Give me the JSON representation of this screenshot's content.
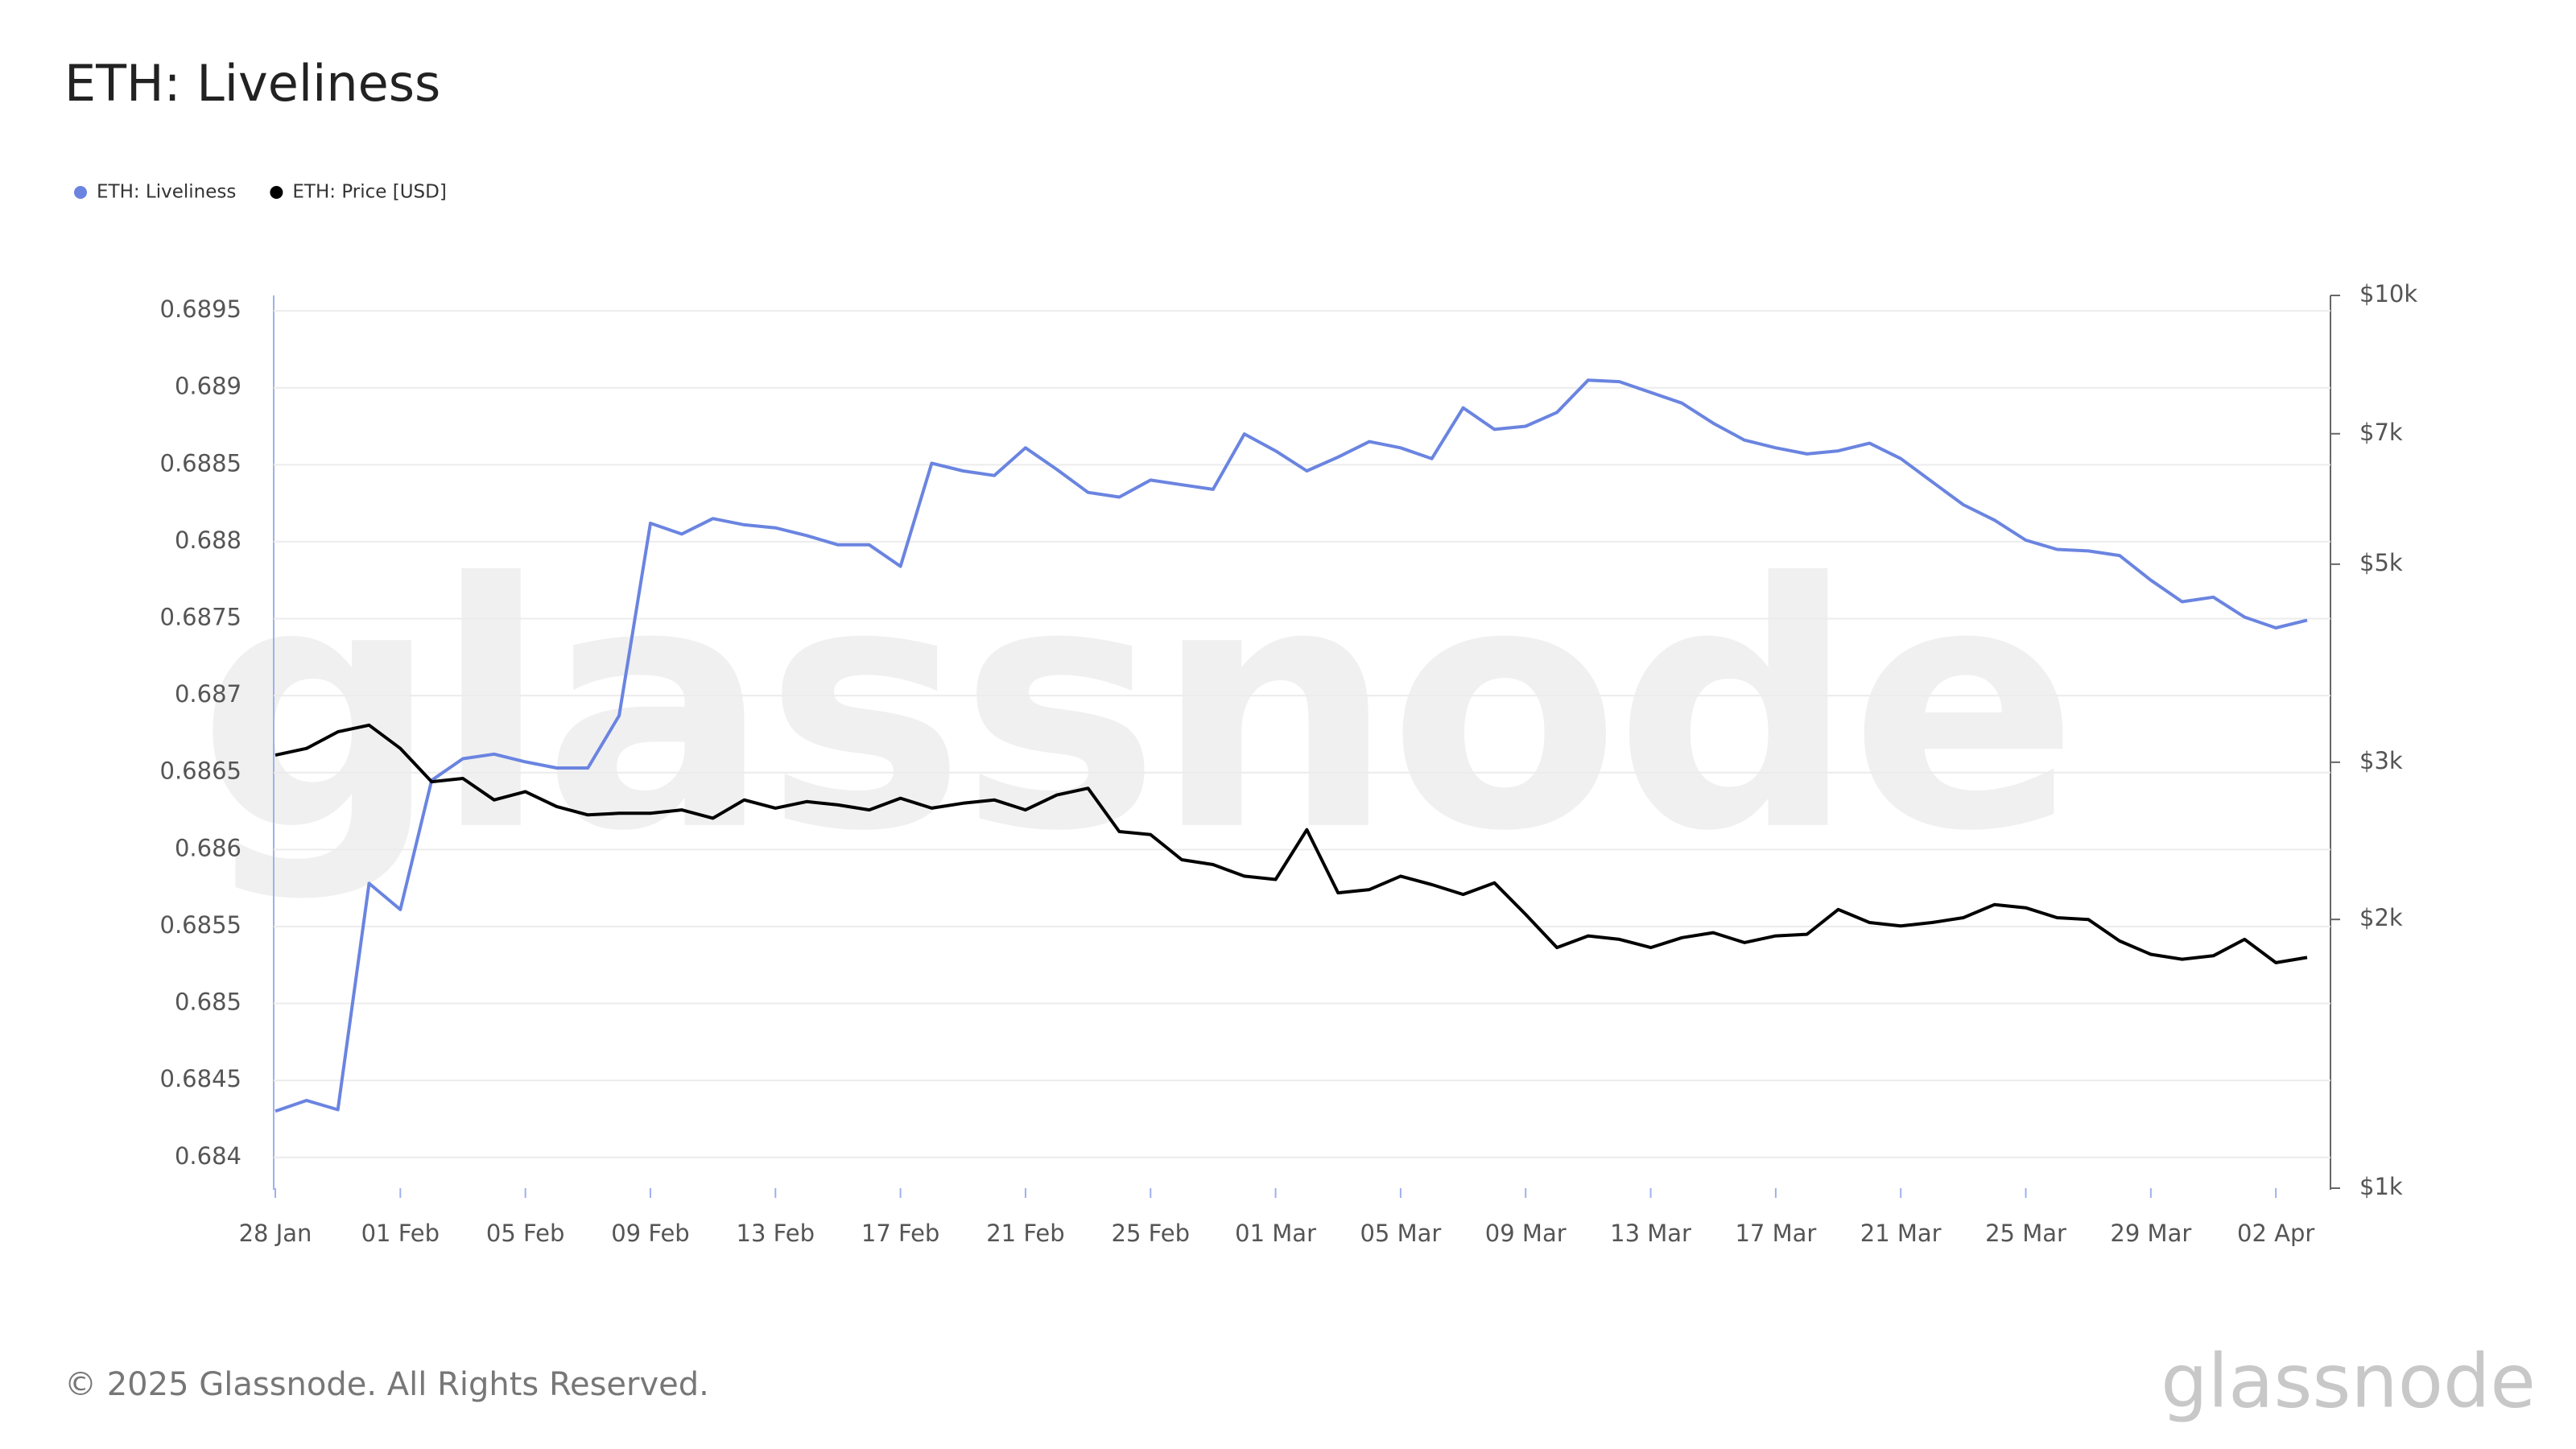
{
  "chart_data": {
    "type": "line",
    "title": "ETH: Liveliness",
    "footer": "© 2025 Glassnode. All Rights Reserved.",
    "logo": "glassnode",
    "watermark": "glassnode",
    "legend": "top-left",
    "grid": true,
    "categories": [
      "28 Jan",
      null,
      null,
      null,
      "01 Feb",
      null,
      null,
      null,
      "05 Feb",
      null,
      null,
      null,
      "09 Feb",
      null,
      null,
      null,
      "13 Feb",
      null,
      null,
      null,
      "17 Feb",
      null,
      null,
      null,
      "21 Feb",
      null,
      null,
      null,
      "25 Feb",
      null,
      null,
      null,
      "01 Mar",
      null,
      null,
      null,
      "05 Mar",
      null,
      null,
      null,
      "09 Mar",
      null,
      null,
      null,
      "13 Mar",
      null,
      null,
      null,
      "17 Mar",
      null,
      null,
      null,
      "21 Mar",
      null,
      null,
      null,
      "25 Mar",
      null,
      null,
      null,
      "29 Mar",
      null,
      null,
      null,
      "02 Apr",
      null
    ],
    "ylim": [
      0.6838,
      0.6896
    ],
    "yticks": [
      0.684,
      0.6845,
      0.685,
      0.6855,
      0.686,
      0.6865,
      0.687,
      0.6875,
      0.688,
      0.6885,
      0.689,
      0.6895
    ],
    "y2lim": [
      1000,
      10000
    ],
    "y2scale": "log",
    "y2ticks": [
      {
        "value": 1000,
        "label": "$1k"
      },
      {
        "value": 2000,
        "label": "$2k"
      },
      {
        "value": 3000,
        "label": "$3k"
      },
      {
        "value": 5000,
        "label": "$5k"
      },
      {
        "value": 7000,
        "label": "$7k"
      },
      {
        "value": 10000,
        "label": "$10k"
      }
    ],
    "series": [
      {
        "name": "ETH: Liveliness",
        "color": "#6a84e0",
        "values": [
          0.6843,
          0.68437,
          0.68431,
          0.68578,
          0.68561,
          0.68645,
          0.68659,
          0.68662,
          0.68657,
          0.68653,
          0.68653,
          0.68687,
          0.68812,
          0.68805,
          0.68815,
          0.68811,
          0.68809,
          0.68804,
          0.68798,
          0.68798,
          0.68784,
          0.68851,
          0.68846,
          0.68843,
          0.68861,
          0.68847,
          0.68832,
          0.68829,
          0.6884,
          0.68837,
          0.68834,
          0.6887,
          0.68859,
          0.68846,
          0.68855,
          0.68865,
          0.68861,
          0.68854,
          0.68887,
          0.68873,
          0.68875,
          0.68884,
          0.68905,
          0.68904,
          0.68897,
          0.6889,
          0.68877,
          0.68866,
          0.68861,
          0.68857,
          0.68859,
          0.68864,
          0.68854,
          0.68839,
          0.68824,
          0.68814,
          0.68801,
          0.68795,
          0.68794,
          0.68791,
          0.68775,
          0.68761,
          0.68764,
          0.68751,
          0.68744,
          0.68749
        ]
      },
      {
        "name": "ETH: Price [USD]",
        "color": "#000000",
        "axis": "y2",
        "values": [
          3055,
          3109,
          3245,
          3301,
          3109,
          2853,
          2877,
          2722,
          2781,
          2676,
          2619,
          2630,
          2630,
          2653,
          2597,
          2722,
          2665,
          2710,
          2687,
          2653,
          2734,
          2665,
          2699,
          2722,
          2653,
          2757,
          2805,
          2509,
          2489,
          2333,
          2304,
          2236,
          2217,
          2521,
          2142,
          2160,
          2236,
          2188,
          2133,
          2198,
          2026,
          1860,
          1917,
          1900,
          1860,
          1908,
          1933,
          1884,
          1917,
          1925,
          2052,
          1984,
          1967,
          1984,
          2009,
          2078,
          2061,
          2009,
          2000,
          1892,
          1828,
          1805,
          1821,
          1900,
          1789,
          1813
        ]
      }
    ]
  }
}
